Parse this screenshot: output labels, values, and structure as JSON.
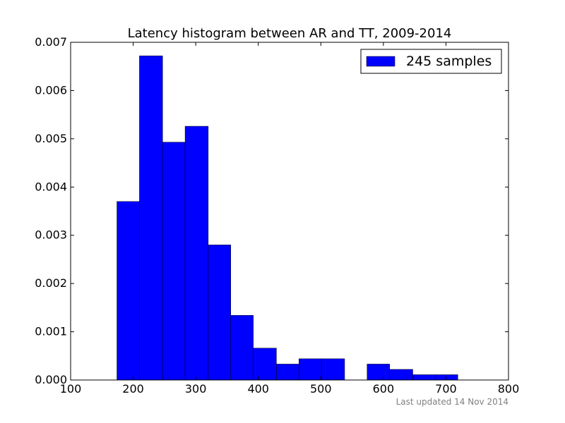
{
  "chart_data": {
    "type": "bar",
    "title": "Latency histogram between AR and TT, 2009-2014",
    "xlabel": "",
    "ylabel": "",
    "xlim": [
      100,
      800
    ],
    "ylim": [
      0,
      0.007
    ],
    "xticks": [
      "100",
      "200",
      "300",
      "400",
      "500",
      "600",
      "700",
      "800"
    ],
    "yticks": [
      "0.000",
      "0.001",
      "0.002",
      "0.003",
      "0.004",
      "0.005",
      "0.006",
      "0.007"
    ],
    "bins": [
      {
        "start": 174,
        "end": 210,
        "value": 0.0037
      },
      {
        "start": 210,
        "end": 247,
        "value": 0.00672
      },
      {
        "start": 247,
        "end": 283,
        "value": 0.00493
      },
      {
        "start": 283,
        "end": 320,
        "value": 0.00526
      },
      {
        "start": 320,
        "end": 356,
        "value": 0.0028
      },
      {
        "start": 356,
        "end": 392,
        "value": 0.00134
      },
      {
        "start": 392,
        "end": 429,
        "value": 0.00066
      },
      {
        "start": 429,
        "end": 465,
        "value": 0.00033
      },
      {
        "start": 465,
        "end": 501,
        "value": 0.00044
      },
      {
        "start": 501,
        "end": 538,
        "value": 0.00044
      },
      {
        "start": 574,
        "end": 610,
        "value": 0.00033
      },
      {
        "start": 610,
        "end": 647,
        "value": 0.00022
      },
      {
        "start": 647,
        "end": 683,
        "value": 0.00011
      },
      {
        "start": 683,
        "end": 719,
        "value": 0.00011
      }
    ],
    "bar_color": "#0000ff",
    "legend": {
      "label": "245 samples",
      "position": "top-right"
    },
    "grid": false,
    "footnote": "Last updated 14 Nov 2014"
  }
}
